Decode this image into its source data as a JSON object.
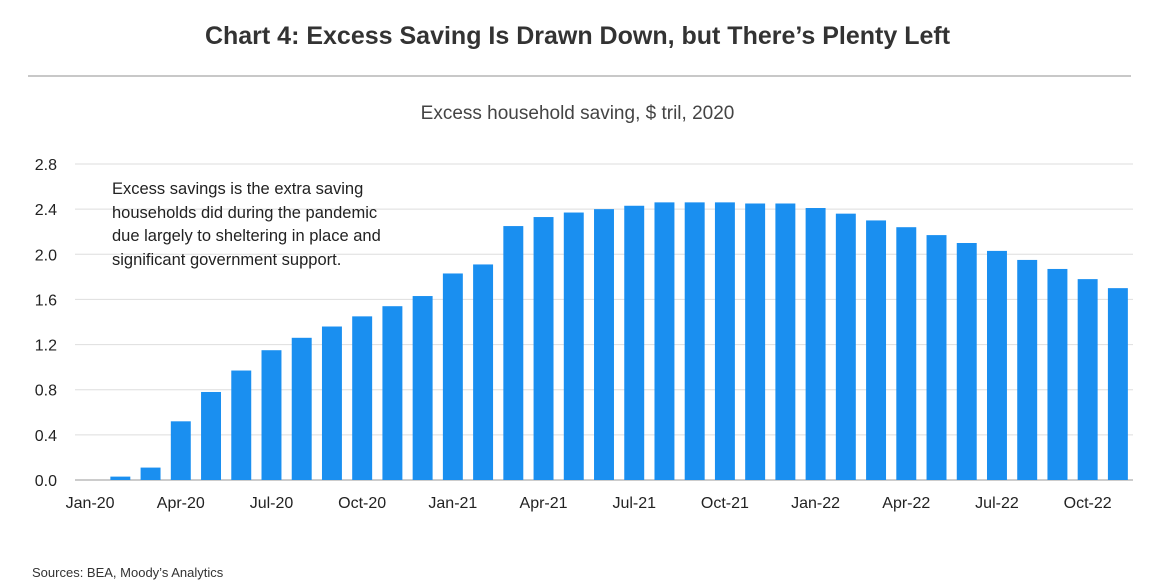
{
  "title": "Chart 4: Excess Saving Is Drawn Down, but There’s Plenty Left",
  "subtitle": "Excess household saving, $ tril, 2020",
  "source": "Sources: BEA, Moody’s Analytics",
  "annotation": [
    "Excess savings is the extra saving",
    "households did during the pandemic",
    "due largely to sheltering in place and",
    "significant government support."
  ],
  "chart_data": {
    "type": "bar",
    "color": "#1a8ff0",
    "ylim": [
      0,
      2.8
    ],
    "yticks": [
      "0.0",
      "0.4",
      "0.8",
      "1.2",
      "1.6",
      "2.0",
      "2.4",
      "2.8"
    ],
    "grid": true,
    "categories": [
      "Jan-20",
      "Feb-20",
      "Mar-20",
      "Apr-20",
      "May-20",
      "Jun-20",
      "Jul-20",
      "Aug-20",
      "Sep-20",
      "Oct-20",
      "Nov-20",
      "Dec-20",
      "Jan-21",
      "Feb-21",
      "Mar-21",
      "Apr-21",
      "May-21",
      "Jun-21",
      "Jul-21",
      "Aug-21",
      "Sep-21",
      "Oct-21",
      "Nov-21",
      "Dec-21",
      "Jan-22",
      "Feb-22",
      "Mar-22",
      "Apr-22",
      "May-22",
      "Jun-22",
      "Jul-22",
      "Aug-22",
      "Sep-22",
      "Oct-22",
      "Nov-22"
    ],
    "xtick_labels": [
      "Jan-20",
      "Apr-20",
      "Jul-20",
      "Oct-20",
      "Jan-21",
      "Apr-21",
      "Jul-21",
      "Oct-21",
      "Jan-22",
      "Apr-22",
      "Jul-22",
      "Oct-22"
    ],
    "values": [
      0.0,
      0.03,
      0.11,
      0.52,
      0.78,
      0.97,
      1.15,
      1.26,
      1.36,
      1.45,
      1.54,
      1.63,
      1.83,
      1.91,
      2.25,
      2.33,
      2.37,
      2.4,
      2.43,
      2.46,
      2.46,
      2.46,
      2.45,
      2.45,
      2.41,
      2.36,
      2.3,
      2.24,
      2.17,
      2.1,
      2.03,
      1.95,
      1.87,
      1.78,
      1.7
    ]
  }
}
